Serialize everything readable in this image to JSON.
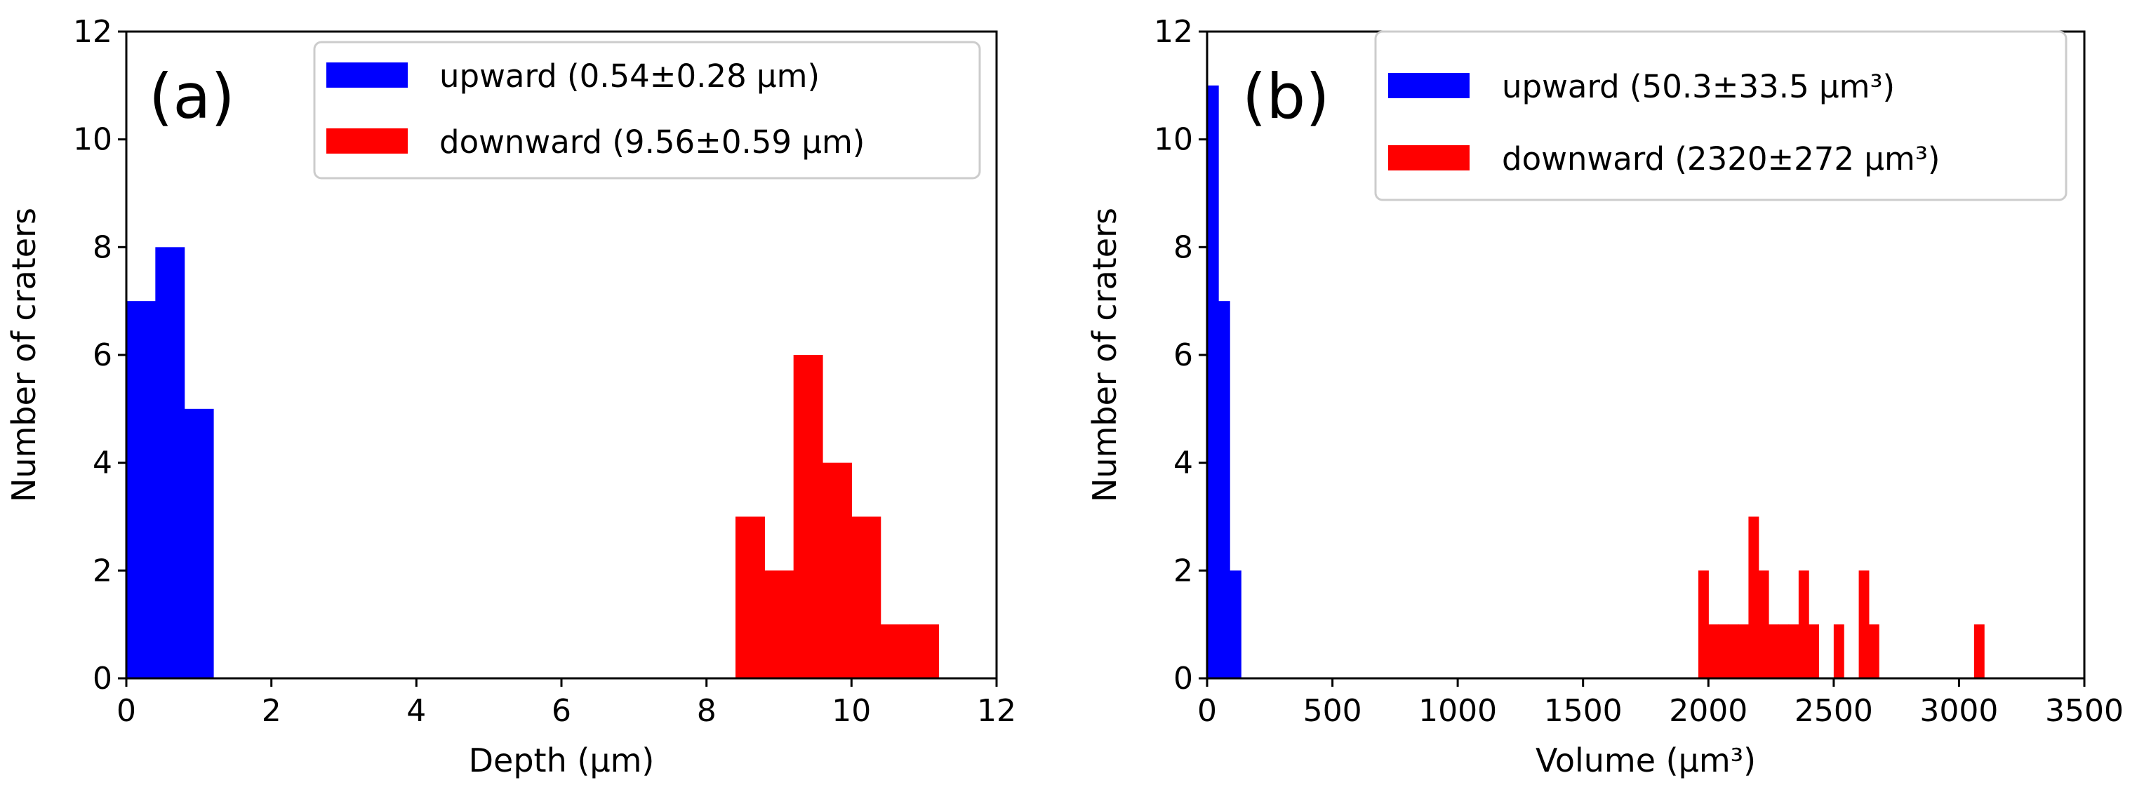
{
  "chart_data": [
    {
      "type": "bar",
      "panel_label": "(a)",
      "xlabel": "Depth (μm)",
      "ylabel": "Number of craters",
      "xlim": [
        0,
        12
      ],
      "ylim": [
        0,
        12
      ],
      "xticks": [
        "0",
        "2",
        "4",
        "6",
        "8",
        "10",
        "12"
      ],
      "yticks": [
        "0",
        "2",
        "4",
        "6",
        "8",
        "10",
        "12"
      ],
      "legend_position": "top-right",
      "series": [
        {
          "name": "upward (0.54±0.28 μm)",
          "color": "#0000ff",
          "bins": [
            {
              "x0": 0.0,
              "x1": 0.4,
              "count": 7
            },
            {
              "x0": 0.4,
              "x1": 0.8,
              "count": 8
            },
            {
              "x0": 0.8,
              "x1": 1.2,
              "count": 5
            }
          ]
        },
        {
          "name": "downward (9.56±0.59 μm)",
          "color": "#ff0000",
          "bins": [
            {
              "x0": 8.4,
              "x1": 8.8,
              "count": 3
            },
            {
              "x0": 8.8,
              "x1": 9.2,
              "count": 2
            },
            {
              "x0": 9.2,
              "x1": 9.6,
              "count": 6
            },
            {
              "x0": 9.6,
              "x1": 10.0,
              "count": 4
            },
            {
              "x0": 10.0,
              "x1": 10.4,
              "count": 3
            },
            {
              "x0": 10.4,
              "x1": 10.8,
              "count": 1
            },
            {
              "x0": 10.8,
              "x1": 11.2,
              "count": 1
            }
          ]
        }
      ]
    },
    {
      "type": "bar",
      "panel_label": "(b)",
      "xlabel": "Volume (μm³)",
      "ylabel": "Number of craters",
      "xlim": [
        0,
        3500
      ],
      "ylim": [
        0,
        12
      ],
      "xticks": [
        "0",
        "500",
        "1000",
        "1500",
        "2000",
        "2500",
        "3000",
        "3500"
      ],
      "yticks": [
        "0",
        "2",
        "4",
        "6",
        "8",
        "10",
        "12"
      ],
      "legend_position": "top-right",
      "series": [
        {
          "name": "upward (50.3±33.5 μm³)",
          "color": "#0000ff",
          "bins": [
            {
              "x0": 0,
              "x1": 45,
              "count": 11
            },
            {
              "x0": 45,
              "x1": 90,
              "count": 7
            },
            {
              "x0": 90,
              "x1": 135,
              "count": 2
            }
          ]
        },
        {
          "name": "downward (2320±272 μm³)",
          "color": "#ff0000",
          "bins": [
            {
              "x0": 1960,
              "x1": 2000,
              "count": 2
            },
            {
              "x0": 2000,
              "x1": 2040,
              "count": 1
            },
            {
              "x0": 2040,
              "x1": 2080,
              "count": 1
            },
            {
              "x0": 2080,
              "x1": 2120,
              "count": 1
            },
            {
              "x0": 2120,
              "x1": 2160,
              "count": 1
            },
            {
              "x0": 2160,
              "x1": 2200,
              "count": 3
            },
            {
              "x0": 2200,
              "x1": 2240,
              "count": 2
            },
            {
              "x0": 2240,
              "x1": 2280,
              "count": 1
            },
            {
              "x0": 2280,
              "x1": 2320,
              "count": 1
            },
            {
              "x0": 2320,
              "x1": 2360,
              "count": 1
            },
            {
              "x0": 2360,
              "x1": 2400,
              "count": 2
            },
            {
              "x0": 2400,
              "x1": 2440,
              "count": 1
            },
            {
              "x0": 2500,
              "x1": 2540,
              "count": 1
            },
            {
              "x0": 2600,
              "x1": 2640,
              "count": 2
            },
            {
              "x0": 2640,
              "x1": 2680,
              "count": 1
            },
            {
              "x0": 3060,
              "x1": 3100,
              "count": 1
            }
          ]
        }
      ]
    }
  ]
}
